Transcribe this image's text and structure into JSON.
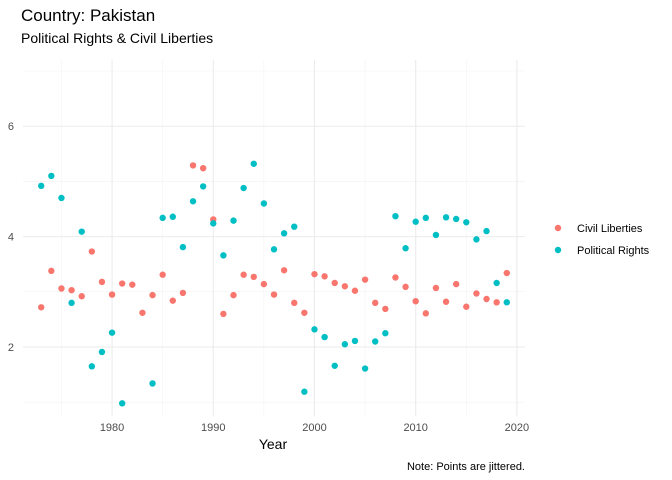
{
  "chart_data": {
    "type": "scatter",
    "title": "Country: Pakistan",
    "subtitle": "Political Rights & Civil Liberties",
    "xlabel": "Year",
    "ylabel": "",
    "caption": "Note: Points are jittered.",
    "xlim": [
      1971.2,
      2020.8
    ],
    "ylim": [
      0.75,
      7.2
    ],
    "x_ticks": [
      1980,
      1990,
      2000,
      2010,
      2020
    ],
    "y_ticks": [
      2,
      4,
      6
    ],
    "grid": true,
    "legend_position": "right",
    "series": [
      {
        "name": "Civil Liberties",
        "color": "#F8766D",
        "points": [
          [
            1973,
            2.72
          ],
          [
            1974,
            3.38
          ],
          [
            1975,
            3.06
          ],
          [
            1976,
            3.03
          ],
          [
            1977,
            2.92
          ],
          [
            1978,
            3.73
          ],
          [
            1979,
            3.18
          ],
          [
            1980,
            2.95
          ],
          [
            1981,
            3.15
          ],
          [
            1982,
            3.13
          ],
          [
            1983,
            2.62
          ],
          [
            1984,
            2.94
          ],
          [
            1985,
            3.31
          ],
          [
            1986,
            2.84
          ],
          [
            1987,
            2.98
          ],
          [
            1988,
            5.29
          ],
          [
            1989,
            5.24
          ],
          [
            1990,
            4.31
          ],
          [
            1991,
            2.6
          ],
          [
            1992,
            2.94
          ],
          [
            1993,
            3.31
          ],
          [
            1994,
            3.27
          ],
          [
            1995,
            3.14
          ],
          [
            1996,
            2.95
          ],
          [
            1997,
            3.39
          ],
          [
            1998,
            2.8
          ],
          [
            1999,
            2.62
          ],
          [
            2000,
            3.32
          ],
          [
            2001,
            3.28
          ],
          [
            2002,
            3.16
          ],
          [
            2003,
            3.1
          ],
          [
            2004,
            3.02
          ],
          [
            2005,
            3.22
          ],
          [
            2006,
            2.8
          ],
          [
            2007,
            2.69
          ],
          [
            2008,
            3.26
          ],
          [
            2009,
            3.09
          ],
          [
            2010,
            2.83
          ],
          [
            2011,
            2.61
          ],
          [
            2012,
            3.07
          ],
          [
            2013,
            2.82
          ],
          [
            2014,
            3.14
          ],
          [
            2015,
            2.73
          ],
          [
            2016,
            2.97
          ],
          [
            2017,
            2.87
          ],
          [
            2018,
            2.81
          ],
          [
            2019,
            3.34
          ]
        ]
      },
      {
        "name": "Political Rights",
        "color": "#00BFC4",
        "points": [
          [
            1973,
            4.92
          ],
          [
            1974,
            5.1
          ],
          [
            1975,
            4.7
          ],
          [
            1976,
            2.8
          ],
          [
            1977,
            4.09
          ],
          [
            1978,
            1.65
          ],
          [
            1979,
            1.91
          ],
          [
            1980,
            2.26
          ],
          [
            1981,
            0.98
          ],
          [
            1984,
            1.34
          ],
          [
            1985,
            4.34
          ],
          [
            1986,
            4.36
          ],
          [
            1987,
            3.81
          ],
          [
            1988,
            4.64
          ],
          [
            1989,
            4.91
          ],
          [
            1990,
            4.24
          ],
          [
            1991,
            3.66
          ],
          [
            1992,
            4.29
          ],
          [
            1993,
            4.88
          ],
          [
            1994,
            5.32
          ],
          [
            1995,
            4.6
          ],
          [
            1996,
            3.77
          ],
          [
            1997,
            4.06
          ],
          [
            1998,
            4.18
          ],
          [
            1999,
            1.19
          ],
          [
            2000,
            2.32
          ],
          [
            2001,
            2.18
          ],
          [
            2002,
            1.66
          ],
          [
            2003,
            2.05
          ],
          [
            2004,
            2.11
          ],
          [
            2005,
            1.61
          ],
          [
            2006,
            2.1
          ],
          [
            2007,
            2.25
          ],
          [
            2008,
            4.37
          ],
          [
            2009,
            3.79
          ],
          [
            2010,
            4.27
          ],
          [
            2011,
            4.34
          ],
          [
            2012,
            4.03
          ],
          [
            2013,
            4.35
          ],
          [
            2014,
            4.32
          ],
          [
            2015,
            4.26
          ],
          [
            2016,
            3.95
          ],
          [
            2017,
            4.1
          ],
          [
            2018,
            3.16
          ],
          [
            2019,
            2.81
          ]
        ]
      }
    ]
  }
}
